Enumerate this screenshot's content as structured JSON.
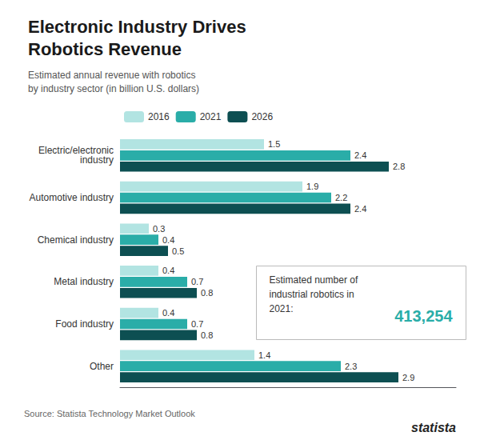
{
  "chart_data": {
    "type": "bar",
    "orientation": "horizontal",
    "title": "Electronic Industry Drives\nRobotics Revenue",
    "subtitle": "Estimated annual revenue with robotics\nby industry sector (in billion U.S. dollars)",
    "categories": [
      "Electric/electronic\nindustry",
      "Automotive industry",
      "Chemical industry",
      "Metal industry",
      "Food industry",
      "Other"
    ],
    "series": [
      {
        "name": "2016",
        "color": "#b2e4e2",
        "values": [
          1.5,
          1.9,
          0.3,
          0.4,
          0.4,
          1.4
        ]
      },
      {
        "name": "2021",
        "color": "#2aada8",
        "values": [
          2.4,
          2.2,
          0.4,
          0.7,
          0.7,
          2.3
        ]
      },
      {
        "name": "2026",
        "color": "#0d4f52",
        "values": [
          2.8,
          2.4,
          0.5,
          0.8,
          0.8,
          2.9
        ]
      }
    ],
    "xlim": [
      0,
      3.5
    ],
    "tick_labels": "y",
    "grid": false,
    "legend": "top",
    "data_labels": true,
    "annotations": [
      "Estimated number of\nindustrial robotics in\n2021:",
      "413,254",
      "Source: Statista Technology Market Outlook",
      "statista"
    ]
  }
}
